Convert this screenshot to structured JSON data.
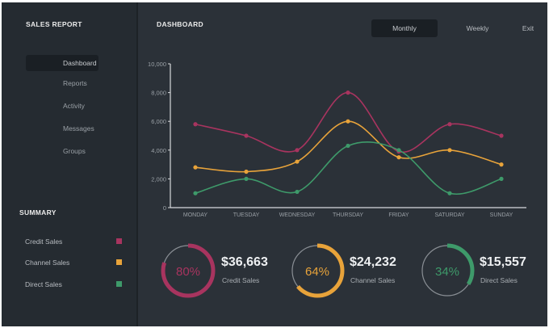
{
  "sidebar": {
    "title": "SALES REPORT",
    "nav": [
      {
        "label": "Dashboard",
        "active": true
      },
      {
        "label": "Reports",
        "active": false
      },
      {
        "label": "Activity",
        "active": false
      },
      {
        "label": "Messages",
        "active": false
      },
      {
        "label": "Groups",
        "active": false
      }
    ],
    "summary_title": "SUMMARY",
    "summary": [
      {
        "label": "Credit Sales",
        "color": "#a8345f"
      },
      {
        "label": "Channel Sales",
        "color": "#e8a33a"
      },
      {
        "label": "Direct Sales",
        "color": "#3e9a6a"
      }
    ]
  },
  "header": {
    "title": "DASHBOARD",
    "tabs": [
      {
        "label": "Monthly",
        "active": true
      },
      {
        "label": "Weekly",
        "active": false
      },
      {
        "label": "Exit",
        "active": false
      }
    ]
  },
  "chart_data": {
    "type": "line",
    "categories": [
      "MONDAY",
      "TUESDAY",
      "WEDNESDAY",
      "THURSDAY",
      "FRIDAY",
      "SATURDAY",
      "SUNDAY"
    ],
    "yticks": [
      "0",
      "2,000",
      "4,000",
      "6,000",
      "8,000",
      "10,000"
    ],
    "ylim": [
      0,
      10000
    ],
    "series": [
      {
        "key": "credit",
        "color": "#a8345f",
        "values": [
          5800,
          5000,
          4000,
          8000,
          3900,
          5800,
          5000
        ]
      },
      {
        "key": "channel",
        "color": "#e8a33a",
        "values": [
          2800,
          2500,
          3200,
          6000,
          3500,
          4000,
          3000
        ]
      },
      {
        "key": "direct",
        "color": "#3e9a6a",
        "values": [
          1000,
          2000,
          1100,
          4300,
          4000,
          1000,
          2000
        ]
      }
    ]
  },
  "stats": [
    {
      "percent": "80%",
      "fraction": 0.8,
      "amount": "$36,663",
      "label": "Credit Sales",
      "color": "#a8345f"
    },
    {
      "percent": "64%",
      "fraction": 0.64,
      "amount": "$24,232",
      "label": "Channel Sales",
      "color": "#e8a33a"
    },
    {
      "percent": "34%",
      "fraction": 0.34,
      "amount": "$15,557",
      "label": "Direct Sales",
      "color": "#3e9a6a"
    }
  ]
}
